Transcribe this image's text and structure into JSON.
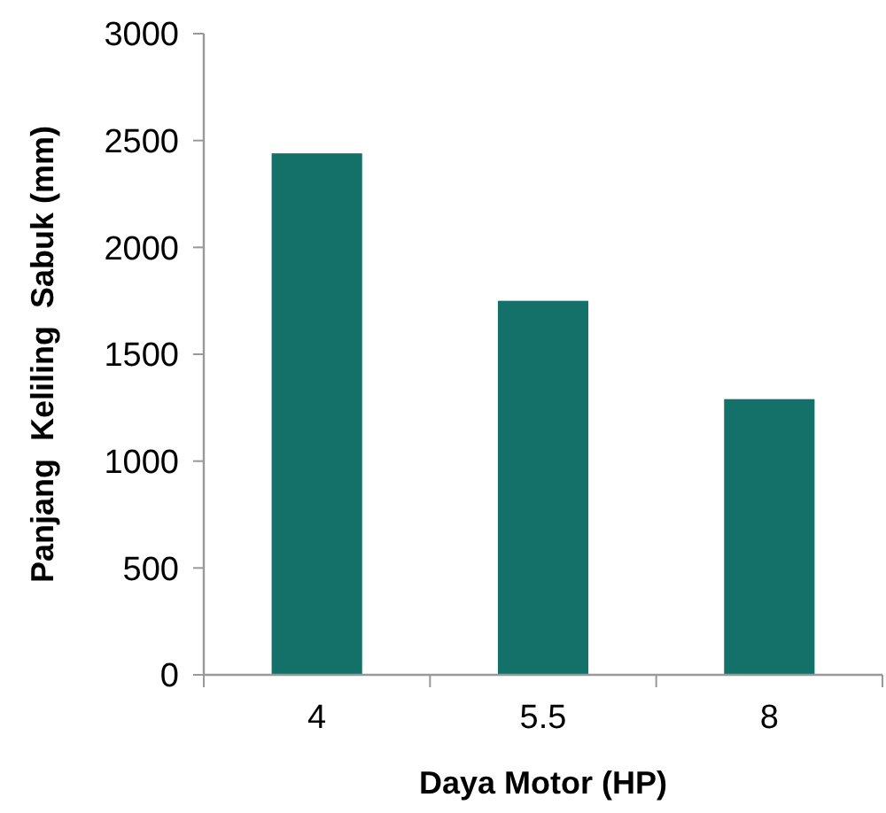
{
  "chart_data": {
    "type": "bar",
    "xlabel": "Daya Motor (HP)",
    "ylabel": "Panjang  Keliling  Sabuk (mm)",
    "categories": [
      "4",
      "5.5",
      "8"
    ],
    "values": [
      2440,
      1750,
      1290
    ],
    "color": "#13716a",
    "ylim": [
      0,
      3000
    ],
    "yticks": [
      0,
      500,
      1000,
      1500,
      2000,
      2500,
      3000
    ],
    "grid": false
  }
}
